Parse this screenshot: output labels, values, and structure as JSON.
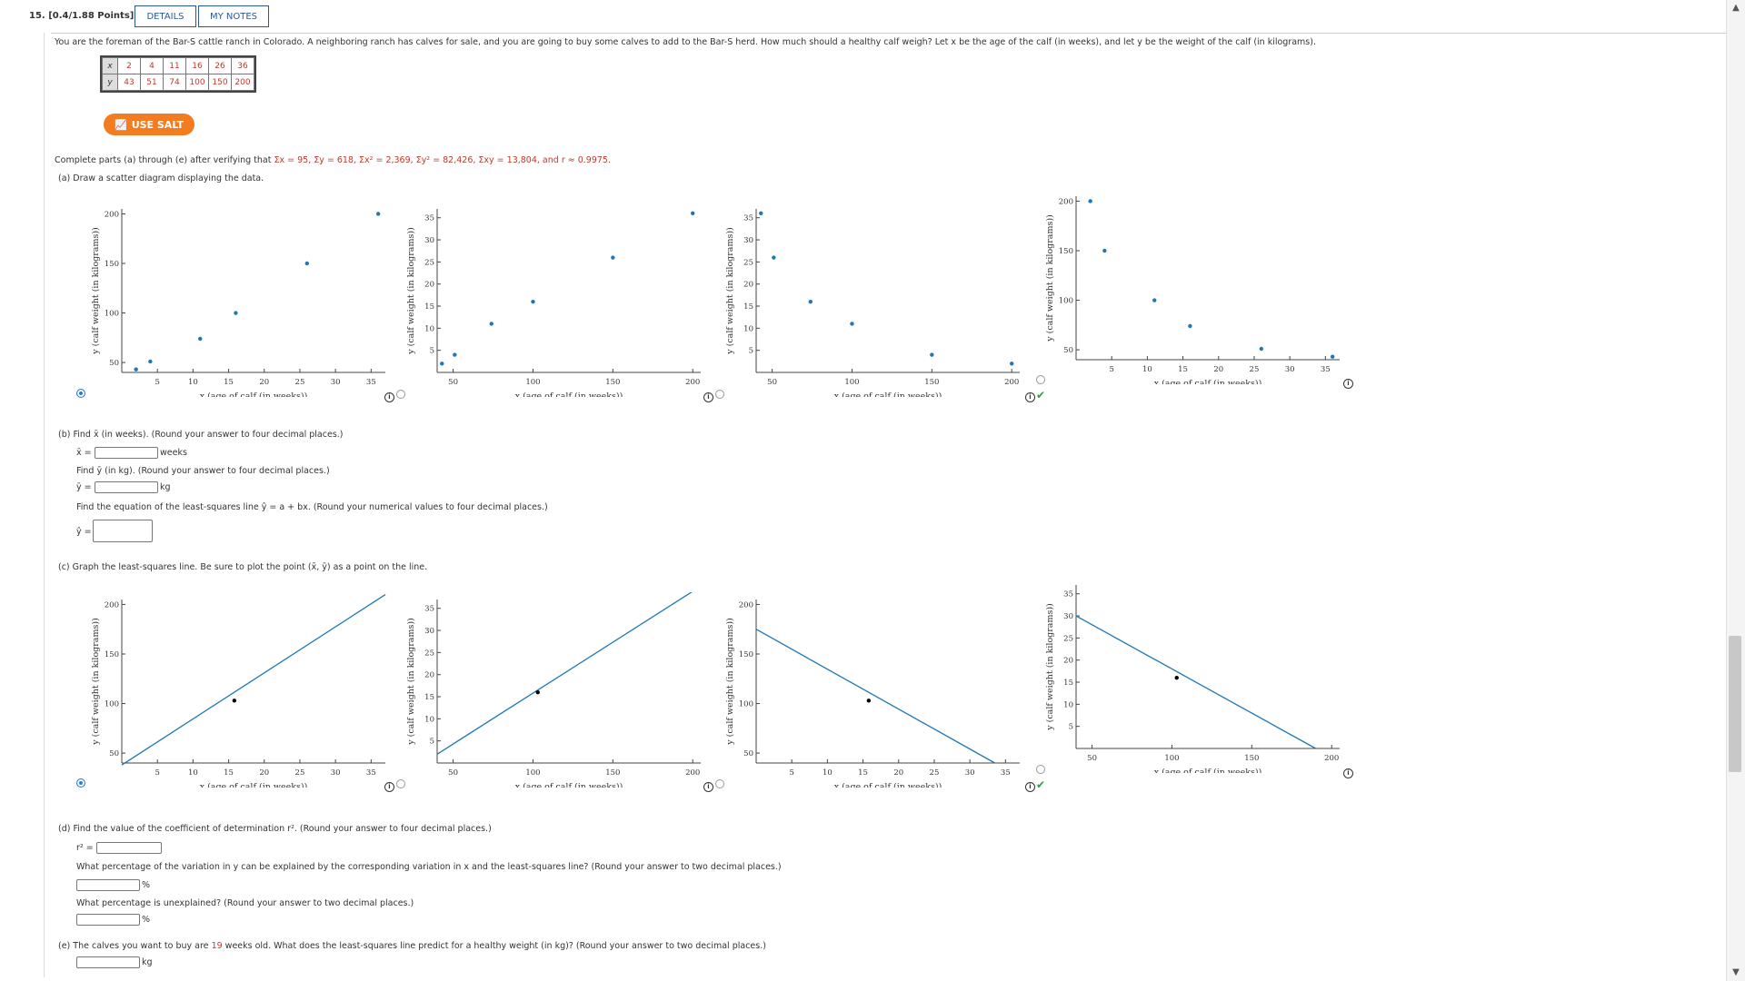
{
  "header": {
    "question_number": "15.",
    "points": "[0.4/1.88 Points]",
    "details_label": "DETAILS",
    "notes_label": "MY NOTES"
  },
  "intro_text": "You are the foreman of the Bar-S cattle ranch in Colorado. A neighboring ranch has calves for sale, and you are going to buy some calves to add to the Bar-S herd. How much should a healthy calf weigh? Let x be the age of the calf (in weeks), and let y be the weight of the calf (in kilograms).",
  "table": {
    "x_label": "x",
    "y_label": "y",
    "x_values": [
      "2",
      "4",
      "11",
      "16",
      "26",
      "36"
    ],
    "y_values": [
      "43",
      "51",
      "74",
      "100",
      "150",
      "200"
    ]
  },
  "salt_button": "USE SALT",
  "verify_text_prefix": "Complete parts (a) through (e) after verifying that ",
  "verify_sums": "Σx = 95, Σy = 618, Σx² = 2,369, Σy² = 82,426, Σxy = 13,804, and r ≈ 0.9975.",
  "part_a": {
    "prompt": "(a) Draw a scatter diagram displaying the data."
  },
  "axis_labels": {
    "x": "x (age of calf (in weeks))",
    "y": "y (calf weight (in kilograms))"
  },
  "part_b": {
    "prompt_xbar": "(b) Find x̄ (in weeks). (Round your answer to four decimal places.)",
    "xbar_label": "x̄ =",
    "xbar_unit": "weeks",
    "prompt_ybar": "Find ȳ (in kg). (Round your answer to four decimal places.)",
    "ybar_label": "ȳ =",
    "ybar_unit": "kg",
    "prompt_eq": "Find the equation of the least-squares line ŷ = a + bx. (Round your numerical values to four decimal places.)",
    "yhat_label": "ŷ ="
  },
  "part_c": {
    "prompt": "(c) Graph the least-squares line. Be sure to plot the point (x̄, ȳ) as a point on the line."
  },
  "part_d": {
    "prompt_r2": "(d) Find the value of the coefficient of determination r². (Round your answer to four decimal places.)",
    "r2_label": "r² =",
    "prompt_explained": "What percentage of the variation in y can be explained by the corresponding variation in x and the least-squares line? (Round your answer to two decimal places.)",
    "explained_unit": "%",
    "prompt_unexplained": "What percentage is unexplained? (Round your answer to two decimal places.)",
    "unexplained_unit": "%"
  },
  "part_e": {
    "prompt_prefix": "(e) The calves you want to buy are ",
    "weeks": "19",
    "prompt_suffix": " weeks old. What does the least-squares line predict for a healthy weight (in kg)? (Round your answer to two decimal places.)",
    "unit": "kg"
  },
  "colors": {
    "accent": "#f47c20",
    "link": "#2b5797",
    "point": "#1f77b4",
    "line": "#1f77b4",
    "red": "#c0392b",
    "check": "#2e9e44"
  },
  "chart_data": [
    {
      "type": "scatter",
      "part": "a1",
      "x": [
        2,
        4,
        11,
        16,
        26,
        36
      ],
      "y": [
        43,
        51,
        74,
        100,
        150,
        200
      ],
      "xlim": [
        0,
        37
      ],
      "ylim": [
        40,
        205
      ],
      "xticks": [
        5,
        10,
        15,
        20,
        25,
        30,
        35
      ],
      "yticks": [
        50,
        100,
        150,
        200
      ],
      "xlabel": "x (age of calf (in weeks))",
      "ylabel": "y (calf weight (in kilograms))",
      "selected": true
    },
    {
      "type": "scatter",
      "part": "a2",
      "x": [
        43,
        51,
        74,
        100,
        150,
        200
      ],
      "y": [
        2,
        4,
        11,
        16,
        26,
        36
      ],
      "xlim": [
        40,
        205
      ],
      "ylim": [
        0,
        37
      ],
      "xticks": [
        50,
        100,
        150,
        200
      ],
      "yticks": [
        5,
        10,
        15,
        20,
        25,
        30,
        35
      ],
      "xlabel": "x (age of calf (in weeks))",
      "ylabel": "y (calf weight (in kilograms))",
      "selected": false
    },
    {
      "type": "scatter",
      "part": "a3",
      "x": [
        43,
        51,
        74,
        100,
        150,
        200
      ],
      "y": [
        36,
        26,
        16,
        11,
        4,
        2
      ],
      "xlim": [
        40,
        205
      ],
      "ylim": [
        0,
        37
      ],
      "xticks": [
        50,
        100,
        150,
        200
      ],
      "yticks": [
        5,
        10,
        15,
        20,
        25,
        30,
        35
      ],
      "xlabel": "x (age of calf (in weeks))",
      "ylabel": "y (calf weight (in kilograms))",
      "selected": false
    },
    {
      "type": "scatter",
      "part": "a4",
      "x": [
        2,
        4,
        11,
        16,
        26,
        36
      ],
      "y": [
        200,
        150,
        100,
        74,
        51,
        43
      ],
      "xlim": [
        0,
        37
      ],
      "ylim": [
        40,
        205
      ],
      "xticks": [
        5,
        10,
        15,
        20,
        25,
        30,
        35
      ],
      "yticks": [
        50,
        100,
        150,
        200
      ],
      "xlabel": "x (age of calf (in weeks))",
      "ylabel": "y (calf weight (in kilograms))",
      "selected": false
    },
    {
      "type": "line",
      "part": "c1",
      "line": [
        [
          0,
          38
        ],
        [
          37,
          210
        ]
      ],
      "point": [
        15.8,
        103
      ],
      "xlim": [
        0,
        37
      ],
      "ylim": [
        40,
        205
      ],
      "xticks": [
        5,
        10,
        15,
        20,
        25,
        30,
        35
      ],
      "yticks": [
        50,
        100,
        150,
        200
      ],
      "xlabel": "x (age of calf (in weeks))",
      "ylabel": "y (calf weight (in kilograms))",
      "selected": true
    },
    {
      "type": "line",
      "part": "c2",
      "line": [
        [
          40,
          2
        ],
        [
          205,
          40
        ]
      ],
      "point": [
        103,
        16
      ],
      "xlim": [
        40,
        205
      ],
      "ylim": [
        0,
        37
      ],
      "xticks": [
        50,
        100,
        150,
        200
      ],
      "yticks": [
        5,
        10,
        15,
        20,
        25,
        30,
        35
      ],
      "xlabel": "x (age of calf (in weeks))",
      "ylabel": "y (calf weight (in kilograms))",
      "selected": false
    },
    {
      "type": "line",
      "part": "c3",
      "line": [
        [
          0,
          175
        ],
        [
          33.5,
          40
        ]
      ],
      "point": [
        15.8,
        103
      ],
      "xlim": [
        0,
        37
      ],
      "ylim": [
        40,
        205
      ],
      "xticks": [
        5,
        10,
        15,
        20,
        25,
        30,
        35
      ],
      "yticks": [
        50,
        100,
        150,
        200
      ],
      "xlabel": "x (age of calf (in weeks))",
      "ylabel": "y (calf weight (in kilograms))",
      "selected": false
    },
    {
      "type": "line",
      "part": "c4",
      "line": [
        [
          40,
          30
        ],
        [
          190,
          0
        ]
      ],
      "point": [
        103,
        16
      ],
      "xlim": [
        40,
        205
      ],
      "ylim": [
        0,
        37
      ],
      "xticks": [
        50,
        100,
        150,
        200
      ],
      "yticks": [
        5,
        10,
        15,
        20,
        25,
        30,
        35
      ],
      "xlabel": "x (age of calf (in weeks))",
      "ylabel": "y (calf weight (in kilograms))",
      "selected": false
    }
  ]
}
